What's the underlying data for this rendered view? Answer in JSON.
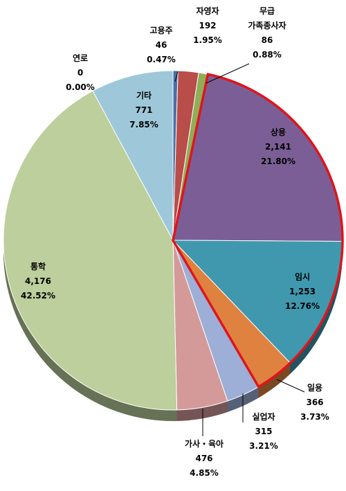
{
  "chart_data": {
    "type": "pie",
    "title": "",
    "slices": [
      {
        "name": "고용주",
        "count": "46",
        "percent": "0.47%",
        "value": 46,
        "color": "#4a6fa5"
      },
      {
        "name": "자영자",
        "count": "192",
        "percent": "1.95%",
        "value": 192,
        "color": "#b84d4a"
      },
      {
        "name": "무급 가족종사자",
        "line1": "무급",
        "line2": "가족종사자",
        "count": "86",
        "percent": "0.88%",
        "value": 86,
        "color": "#8fae57"
      },
      {
        "name": "상용",
        "count": "2,141",
        "percent": "21.80%",
        "value": 2141,
        "color": "#7b5e95",
        "highlight": "#e0141b"
      },
      {
        "name": "임시",
        "count": "1,253",
        "percent": "12.76%",
        "value": 1253,
        "color": "#3f98ae"
      },
      {
        "name": "일용",
        "count": "366",
        "percent": "3.73%",
        "value": 366,
        "color": "#e0823f"
      },
      {
        "name": "실업자",
        "count": "315",
        "percent": "3.21%",
        "value": 315,
        "color": "#9dafd6"
      },
      {
        "name": "가사・육아",
        "count": "476",
        "percent": "4.85%",
        "value": 476,
        "color": "#d49a9a"
      },
      {
        "name": "통학",
        "count": "4,176",
        "percent": "42.52%",
        "value": 4176,
        "color": "#bccf9c"
      },
      {
        "name": "연로",
        "count": "0",
        "percent": "0.00%",
        "value": 0,
        "color": "#6f3f7e"
      },
      {
        "name": "기타",
        "count": "771",
        "percent": "7.85%",
        "value": 771,
        "color": "#9ec8da"
      }
    ],
    "highlighted_group": [
      "상용",
      "임시",
      "일용"
    ],
    "legend": "none"
  }
}
